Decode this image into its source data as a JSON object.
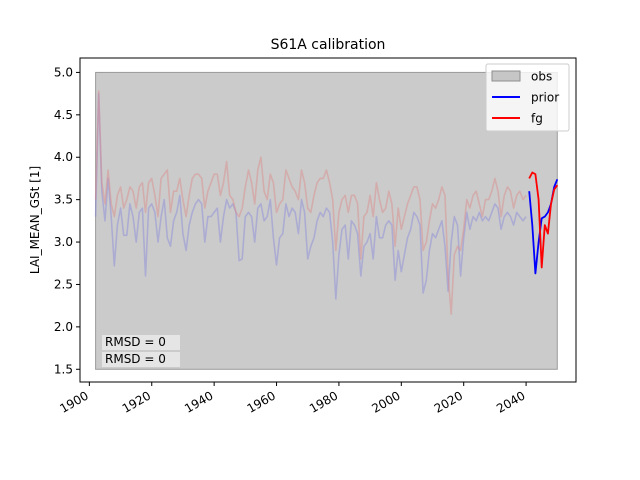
{
  "chart_data": {
    "type": "line",
    "title": "S61A calibration",
    "xlabel": "",
    "ylabel": "LAI_MEAN_GSt [1]",
    "xlim": [
      1897,
      2056
    ],
    "ylim": [
      1.35,
      5.17
    ],
    "xticks": [
      1900,
      1920,
      1940,
      1960,
      1980,
      2000,
      2020,
      2040
    ],
    "yticks": [
      "1.5",
      "2.0",
      "2.5",
      "3.0",
      "3.5",
      "4.0",
      "4.5",
      "5.0"
    ],
    "grid": false,
    "legend": {
      "placement": "top-right",
      "entries": [
        {
          "label": "obs",
          "color": "#b0b0b0",
          "kind": "patch"
        },
        {
          "label": "prior",
          "color": "#0000ff",
          "kind": "line"
        },
        {
          "label": "fg",
          "color": "#ff0000",
          "kind": "line"
        }
      ]
    },
    "obs_band": {
      "x0": 1902,
      "x1": 2050,
      "y0": 1.5,
      "y1": 5.0,
      "color": "#b0b0b0"
    },
    "series": [
      {
        "name": "prior (faded history)",
        "color": "#8888dd",
        "x": [
          1902,
          1903,
          1904,
          1905,
          1906,
          1907,
          1908,
          1909,
          1910,
          1911,
          1912,
          1913,
          1914,
          1915,
          1916,
          1917,
          1918,
          1919,
          1920,
          1921,
          1922,
          1923,
          1924,
          1925,
          1926,
          1927,
          1928,
          1929,
          1930,
          1931,
          1932,
          1933,
          1934,
          1935,
          1936,
          1937,
          1938,
          1939,
          1940,
          1941,
          1942,
          1943,
          1944,
          1945,
          1946,
          1947,
          1948,
          1949,
          1950,
          1951,
          1952,
          1953,
          1954,
          1955,
          1956,
          1957,
          1958,
          1959,
          1960,
          1961,
          1962,
          1963,
          1964,
          1965,
          1966,
          1967,
          1968,
          1969,
          1970,
          1971,
          1972,
          1973,
          1974,
          1975,
          1976,
          1977,
          1978,
          1979,
          1980,
          1981,
          1982,
          1983,
          1984,
          1985,
          1986,
          1987,
          1988,
          1989,
          1990,
          1991,
          1992,
          1993,
          1994,
          1995,
          1996,
          1997,
          1998,
          1999,
          2000,
          2001,
          2002,
          2003,
          2004,
          2005,
          2006,
          2007,
          2008,
          2009,
          2010,
          2011,
          2012,
          2013,
          2014,
          2015,
          2016,
          2017,
          2018,
          2019,
          2020,
          2021,
          2022,
          2023,
          2024,
          2025,
          2026,
          2027,
          2028,
          2029,
          2030,
          2031,
          2032,
          2033,
          2034,
          2035,
          2036,
          2037,
          2038,
          2039,
          2040
        ],
        "y": [
          3.3,
          4.75,
          3.6,
          3.25,
          3.75,
          3.3,
          2.72,
          3.2,
          3.4,
          3.08,
          3.08,
          3.45,
          3.3,
          3.0,
          3.35,
          3.4,
          2.6,
          3.4,
          3.45,
          3.35,
          3.0,
          3.3,
          3.5,
          3.05,
          2.95,
          3.25,
          3.35,
          3.55,
          3.1,
          2.9,
          3.2,
          3.35,
          3.45,
          3.5,
          3.45,
          3.0,
          3.3,
          3.3,
          3.35,
          3.4,
          3.0,
          3.3,
          3.5,
          3.4,
          3.45,
          3.35,
          2.78,
          2.8,
          3.3,
          3.35,
          3.3,
          3.0,
          3.4,
          3.45,
          3.25,
          3.3,
          3.5,
          3.05,
          2.73,
          3.05,
          3.1,
          3.45,
          3.3,
          3.4,
          3.35,
          3.1,
          3.5,
          3.35,
          2.8,
          2.95,
          3.05,
          3.25,
          3.35,
          3.3,
          3.4,
          3.35,
          3.0,
          2.33,
          2.85,
          3.15,
          3.2,
          2.8,
          3.25,
          3.2,
          3.1,
          2.6,
          2.95,
          3.0,
          3.1,
          2.8,
          3.3,
          3.05,
          3.05,
          3.2,
          3.25,
          3.2,
          2.55,
          2.9,
          2.65,
          2.85,
          3.05,
          3.15,
          3.35,
          3.3,
          3.2,
          2.4,
          2.55,
          2.9,
          3.1,
          3.05,
          3.15,
          3.25,
          2.95,
          2.42,
          3.0,
          3.3,
          3.2,
          2.6,
          3.05,
          3.35,
          3.15,
          3.3,
          3.25,
          3.35,
          3.25,
          3.3,
          3.25,
          3.35,
          3.45,
          3.4,
          3.15,
          3.3,
          3.35,
          3.3,
          3.2,
          3.35,
          3.3,
          3.25,
          3.3
        ]
      },
      {
        "name": "fg (faded history)",
        "color": "#dd8888",
        "x": [
          1902,
          1903,
          1904,
          1905,
          1906,
          1907,
          1908,
          1909,
          1910,
          1911,
          1912,
          1913,
          1914,
          1915,
          1916,
          1917,
          1918,
          1919,
          1920,
          1921,
          1922,
          1923,
          1924,
          1925,
          1926,
          1927,
          1928,
          1929,
          1930,
          1931,
          1932,
          1933,
          1934,
          1935,
          1936,
          1937,
          1938,
          1939,
          1940,
          1941,
          1942,
          1943,
          1944,
          1945,
          1946,
          1947,
          1948,
          1949,
          1950,
          1951,
          1952,
          1953,
          1954,
          1955,
          1956,
          1957,
          1958,
          1959,
          1960,
          1961,
          1962,
          1963,
          1964,
          1965,
          1966,
          1967,
          1968,
          1969,
          1970,
          1971,
          1972,
          1973,
          1974,
          1975,
          1976,
          1977,
          1978,
          1979,
          1980,
          1981,
          1982,
          1983,
          1984,
          1985,
          1986,
          1987,
          1988,
          1989,
          1990,
          1991,
          1992,
          1993,
          1994,
          1995,
          1996,
          1997,
          1998,
          1999,
          2000,
          2001,
          2002,
          2003,
          2004,
          2005,
          2006,
          2007,
          2008,
          2009,
          2010,
          2011,
          2012,
          2013,
          2014,
          2015,
          2016,
          2017,
          2018,
          2019,
          2020,
          2021,
          2022,
          2023,
          2024,
          2025,
          2026,
          2027,
          2028,
          2029,
          2030,
          2031,
          2032,
          2033,
          2034,
          2035,
          2036,
          2037,
          2038,
          2039,
          2040
        ],
        "y": [
          3.5,
          4.78,
          3.7,
          3.45,
          3.85,
          3.45,
          3.3,
          3.55,
          3.65,
          3.4,
          3.5,
          3.65,
          3.6,
          3.4,
          3.65,
          3.7,
          3.35,
          3.7,
          3.75,
          3.55,
          3.3,
          3.75,
          3.8,
          3.85,
          3.35,
          3.6,
          3.6,
          3.75,
          3.5,
          3.3,
          3.55,
          3.75,
          3.8,
          3.8,
          3.75,
          3.4,
          3.6,
          3.7,
          3.8,
          3.8,
          3.55,
          3.7,
          3.95,
          3.55,
          3.5,
          3.35,
          3.3,
          3.4,
          3.65,
          3.85,
          3.7,
          3.45,
          3.85,
          4.0,
          3.6,
          3.5,
          3.8,
          3.7,
          3.35,
          3.45,
          3.5,
          3.85,
          3.75,
          3.65,
          3.6,
          3.5,
          3.85,
          3.7,
          3.4,
          3.35,
          3.55,
          3.7,
          3.75,
          3.75,
          3.85,
          3.7,
          3.5,
          2.9,
          3.35,
          3.5,
          3.55,
          3.35,
          3.55,
          3.55,
          3.45,
          2.8,
          3.3,
          3.35,
          3.55,
          3.3,
          3.7,
          3.5,
          3.35,
          3.4,
          3.6,
          3.45,
          2.95,
          3.4,
          3.15,
          3.3,
          3.45,
          3.55,
          3.65,
          3.65,
          3.5,
          2.9,
          3.0,
          3.25,
          3.45,
          3.4,
          3.5,
          3.65,
          3.55,
          2.6,
          2.15,
          2.85,
          2.95,
          2.9,
          3.15,
          3.5,
          3.4,
          3.55,
          3.6,
          3.45,
          3.3,
          3.5,
          3.5,
          3.6,
          3.75,
          3.6,
          3.3,
          3.55,
          3.65,
          3.6,
          3.4,
          3.55,
          3.6,
          3.5,
          3.55
        ]
      },
      {
        "name": "prior",
        "color": "#0000ff",
        "x": [
          2041,
          2042,
          2043,
          2044,
          2045,
          2046,
          2047,
          2048,
          2049,
          2050
        ],
        "y": [
          3.6,
          3.2,
          2.63,
          3.0,
          3.28,
          3.3,
          3.35,
          3.45,
          3.65,
          3.74
        ]
      },
      {
        "name": "fg",
        "color": "#ff0000",
        "x": [
          2041,
          2042,
          2043,
          2044,
          2045,
          2046,
          2047,
          2048,
          2049,
          2050
        ],
        "y": [
          3.75,
          3.82,
          3.8,
          3.5,
          2.7,
          3.2,
          3.1,
          3.45,
          3.62,
          3.67
        ]
      }
    ],
    "annotations": [
      {
        "text": "RMSD = 0",
        "color": "#0000ff"
      },
      {
        "text": "RMSD = 0",
        "color": "#ff0000"
      }
    ]
  }
}
